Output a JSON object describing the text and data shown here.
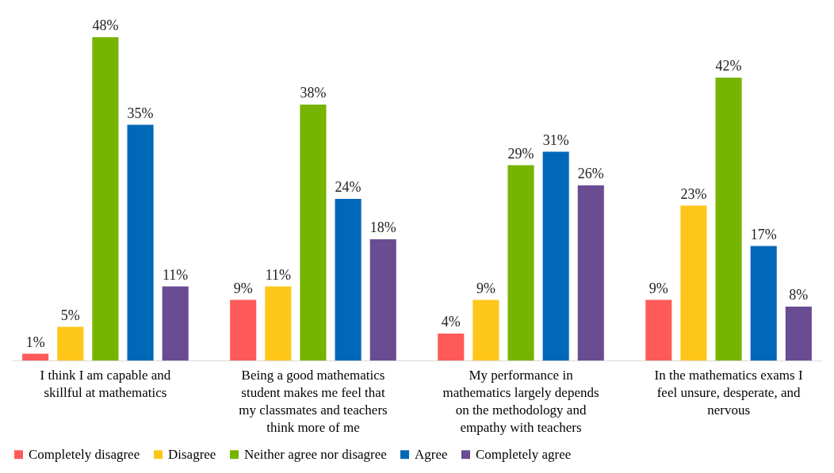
{
  "chart_data": {
    "type": "bar",
    "categories": [
      "I think I am capable and skillful at mathematics",
      "Being a good mathematics student makes me feel that my classmates and teachers think more of me",
      "My performance in mathematics largely depends on the methodology and empathy with teachers",
      "In the mathematics exams I feel unsure, desperate, and nervous"
    ],
    "series": [
      {
        "name": "Completely disagree",
        "color": "#ff5a5a",
        "values": [
          1,
          9,
          4,
          9
        ],
        "value_labels": [
          "1%",
          "9%",
          "4%",
          "9%"
        ]
      },
      {
        "name": "Disagree",
        "color": "#ffc61a",
        "values": [
          5,
          11,
          9,
          23
        ],
        "value_labels": [
          "5%",
          "11%",
          "9%",
          "23%"
        ]
      },
      {
        "name": "Neither agree nor disagree",
        "color": "#76b400",
        "values": [
          48,
          38,
          29,
          42
        ],
        "value_labels": [
          "48%",
          "38%",
          "29%",
          "42%"
        ]
      },
      {
        "name": "Agree",
        "color": "#0068b8",
        "values": [
          35,
          24,
          31,
          17
        ],
        "value_labels": [
          "35%",
          "24%",
          "31%",
          "17%"
        ]
      },
      {
        "name": "Completely agree",
        "color": "#6a4c93",
        "values": [
          11,
          18,
          26,
          8
        ],
        "value_labels": [
          "11%",
          "18%",
          "26%",
          "8%"
        ]
      }
    ],
    "legend": "bottom",
    "grid": false
  }
}
